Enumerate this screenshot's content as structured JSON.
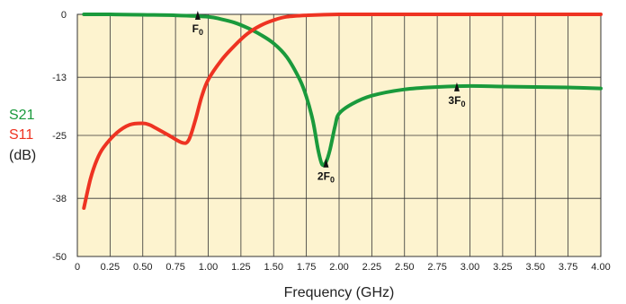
{
  "chart_data": {
    "type": "line",
    "xlabel": "Frequency (GHz)",
    "ylabel": "(dB)",
    "xlim": [
      0,
      4.0
    ],
    "ylim": [
      -50,
      0
    ],
    "x_ticks": [
      "0",
      "0.25",
      "0.50",
      "0.75",
      "1.00",
      "1.25",
      "1.50",
      "1.75",
      "2.00",
      "2.25",
      "2.50",
      "2.75",
      "3.00",
      "3.25",
      "3.50",
      "3.75",
      "4.00"
    ],
    "y_ticks": [
      "0",
      "-13",
      "-25",
      "-38",
      "-50"
    ],
    "grid": true,
    "background_color": "#fdf3cf",
    "series": [
      {
        "name": "S21",
        "color": "#1a9a3c",
        "x": [
          0.05,
          0.25,
          0.5,
          0.75,
          1.0,
          1.1,
          1.2,
          1.3,
          1.4,
          1.5,
          1.6,
          1.7,
          1.75,
          1.8,
          1.84,
          1.87,
          1.9,
          1.93,
          1.97,
          2.0,
          2.1,
          2.25,
          2.5,
          2.75,
          3.0,
          3.25,
          3.5,
          3.75,
          4.0
        ],
        "y": [
          0,
          0,
          -0.1,
          -0.2,
          -0.5,
          -1.0,
          -1.7,
          -2.8,
          -4.2,
          -6.0,
          -8.8,
          -13.5,
          -17.0,
          -22.0,
          -28.0,
          -31.0,
          -30.5,
          -28.0,
          -23.0,
          -20.5,
          -18.5,
          -16.8,
          -15.5,
          -15.0,
          -14.8,
          -14.9,
          -15.0,
          -15.1,
          -15.3
        ]
      },
      {
        "name": "S11",
        "color": "#ee3322",
        "x": [
          0.05,
          0.1,
          0.15,
          0.2,
          0.3,
          0.4,
          0.5,
          0.55,
          0.6,
          0.7,
          0.8,
          0.85,
          0.9,
          0.95,
          1.0,
          1.1,
          1.2,
          1.3,
          1.4,
          1.5,
          1.6,
          1.75,
          2.0,
          2.5,
          3.0,
          3.5,
          4.0
        ],
        "y": [
          -40,
          -34,
          -30,
          -27.5,
          -24.5,
          -22.8,
          -22.5,
          -22.8,
          -23.5,
          -25.0,
          -26.5,
          -26.0,
          -22.0,
          -17.0,
          -13.5,
          -9.5,
          -6.5,
          -4.0,
          -2.3,
          -1.2,
          -0.5,
          -0.2,
          0,
          0,
          0,
          0,
          0
        ]
      }
    ],
    "annotations": [
      {
        "label": "F",
        "sub": "0",
        "x": 0.92,
        "y": 0
      },
      {
        "label": "2F",
        "sub": "0",
        "x": 1.9,
        "y": -30.5
      },
      {
        "label": "3F",
        "sub": "0",
        "x": 2.9,
        "y": -14.8
      }
    ],
    "legend": [
      {
        "label": "S21",
        "color": "#1a9a3c"
      },
      {
        "label": "S11",
        "color": "#ee3322"
      }
    ]
  }
}
